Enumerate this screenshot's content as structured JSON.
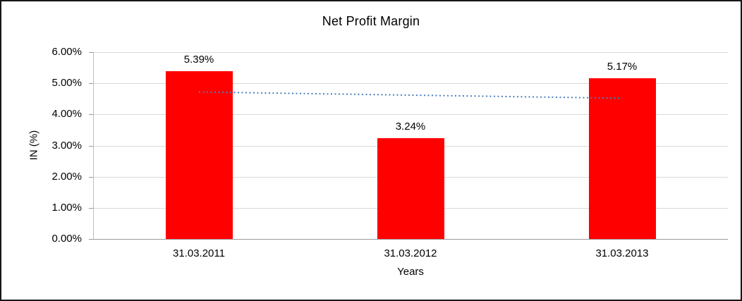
{
  "chart_data": {
    "type": "bar",
    "title": "Net Profit Margin",
    "xlabel": "Years",
    "ylabel": "IN (%)",
    "categories": [
      "31.03.2011",
      "31.03.2012",
      "31.03.2013"
    ],
    "values": [
      5.39,
      3.24,
      5.17
    ],
    "data_labels": [
      "5.39%",
      "3.24%",
      "5.17%"
    ],
    "ylim": [
      0,
      6
    ],
    "ytick_step": 1,
    "ytick_labels": [
      "0.00%",
      "1.00%",
      "2.00%",
      "3.00%",
      "4.00%",
      "5.00%",
      "6.00%"
    ],
    "grid": true,
    "legend": "none",
    "bar_color": "#ff0000",
    "gridline_color": "#d9d9d9",
    "trendline": {
      "style": "dotted",
      "color": "#4a7ebb",
      "start_value": 4.72,
      "end_value": 4.52
    }
  }
}
